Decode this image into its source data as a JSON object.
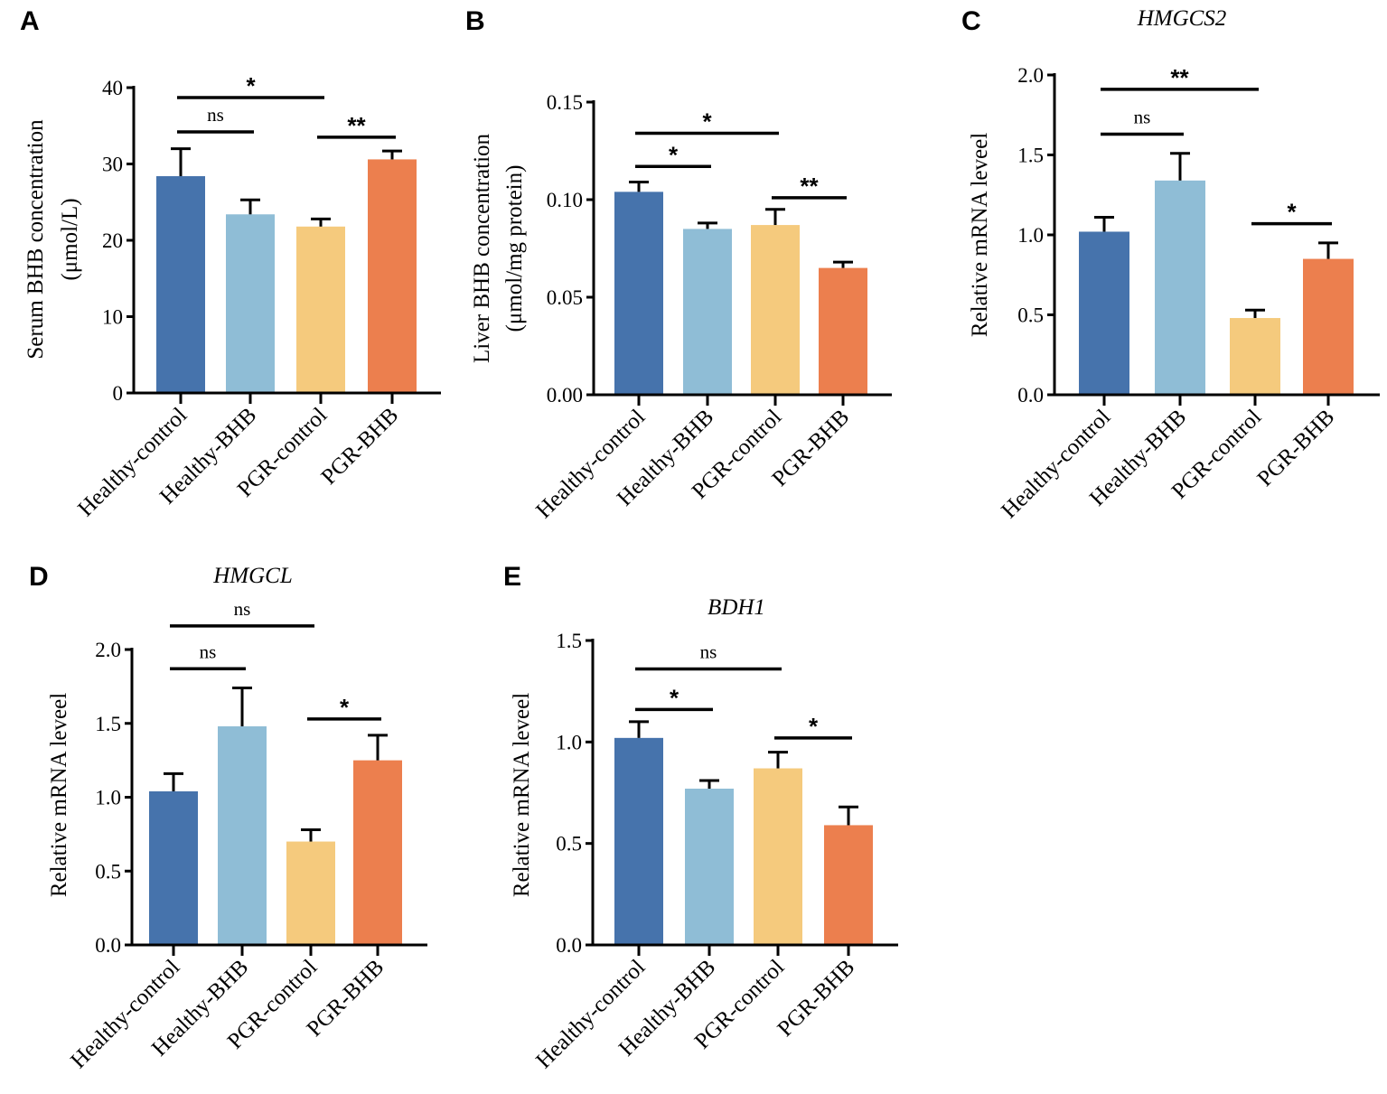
{
  "colors": {
    "healthy_control": "#4673ac",
    "healthy_bhb": "#8fbdd6",
    "pgr_control": "#f5ca7d",
    "pgr_bhb": "#ec7f4e"
  },
  "chart_data": [
    {
      "type": "bar",
      "panel": "A",
      "title": "",
      "ylabel": [
        "Serum BHB concentration",
        "(μmol/L)"
      ],
      "xlabel": "",
      "categories": [
        "Healthy-control",
        "Healthy-BHB",
        "PGR-control",
        "PGR-BHB"
      ],
      "values": [
        28.4,
        23.4,
        21.8,
        30.6
      ],
      "errors": [
        3.6,
        1.9,
        1.0,
        1.1
      ],
      "ylim": [
        0,
        40
      ],
      "yticks": [
        0,
        10,
        20,
        30,
        40
      ],
      "tick_labels": [
        "0",
        "10",
        "20",
        "30",
        "40"
      ],
      "comparisons": [
        {
          "from": 0,
          "to": 1,
          "label": "ns",
          "y": 34.2
        },
        {
          "from": 0,
          "to": 2,
          "label": "*",
          "y": 38.7
        },
        {
          "from": 2,
          "to": 3,
          "label": "**",
          "y": 33.5
        }
      ]
    },
    {
      "type": "bar",
      "panel": "B",
      "title": "",
      "ylabel": [
        "Liver BHB concentration",
        "(μmol/mg protein)"
      ],
      "xlabel": "",
      "categories": [
        "Healthy-control",
        "Healthy-BHB",
        "PGR-control",
        "PGR-BHB"
      ],
      "values": [
        0.104,
        0.085,
        0.087,
        0.065
      ],
      "errors": [
        0.005,
        0.003,
        0.008,
        0.003
      ],
      "ylim": [
        0,
        0.15
      ],
      "yticks": [
        0,
        0.05,
        0.1,
        0.15
      ],
      "tick_labels": [
        "0.00",
        "0.05",
        "0.10",
        "0.15"
      ],
      "comparisons": [
        {
          "from": 0,
          "to": 1,
          "label": "*",
          "y": 0.117
        },
        {
          "from": 0,
          "to": 2,
          "label": "*",
          "y": 0.134
        },
        {
          "from": 2,
          "to": 3,
          "label": "**",
          "y": 0.101
        }
      ]
    },
    {
      "type": "bar",
      "panel": "C",
      "title": "HMGCS2",
      "ylabel": [
        "Relative mRNA leveel"
      ],
      "xlabel": "",
      "categories": [
        "Healthy-control",
        "Healthy-BHB",
        "PGR-control",
        "PGR-BHB"
      ],
      "values": [
        1.02,
        1.34,
        0.48,
        0.85
      ],
      "errors": [
        0.09,
        0.17,
        0.05,
        0.1
      ],
      "ylim": [
        0,
        2.0
      ],
      "yticks": [
        0,
        0.5,
        1.0,
        1.5,
        2.0
      ],
      "tick_labels": [
        "0.0",
        "0.5",
        "1.0",
        "1.5",
        "2.0"
      ],
      "comparisons": [
        {
          "from": 0,
          "to": 1,
          "label": "ns",
          "y": 1.63
        },
        {
          "from": 0,
          "to": 2,
          "label": "**",
          "y": 1.91
        },
        {
          "from": 2,
          "to": 3,
          "label": "*",
          "y": 1.07
        }
      ]
    },
    {
      "type": "bar",
      "panel": "D",
      "title": "HMGCL",
      "ylabel": [
        "Relative mRNA leveel"
      ],
      "xlabel": "",
      "categories": [
        "Healthy-control",
        "Healthy-BHB",
        "PGR-control",
        "PGR-BHB"
      ],
      "values": [
        1.04,
        1.48,
        0.7,
        1.25
      ],
      "errors": [
        0.12,
        0.26,
        0.08,
        0.17
      ],
      "ylim": [
        0,
        2.0
      ],
      "yticks": [
        0,
        0.5,
        1.0,
        1.5,
        2.0
      ],
      "tick_labels": [
        "0.0",
        "0.5",
        "1.0",
        "1.5",
        "2.0"
      ],
      "comparisons": [
        {
          "from": 0,
          "to": 1,
          "label": "ns",
          "y": 1.87
        },
        {
          "from": 0,
          "to": 2,
          "label": "ns",
          "y": 2.16
        },
        {
          "from": 2,
          "to": 3,
          "label": "*",
          "y": 1.53
        }
      ]
    },
    {
      "type": "bar",
      "panel": "E",
      "title": "BDH1",
      "ylabel": [
        "Relative mRNA leveel"
      ],
      "xlabel": "",
      "categories": [
        "Healthy-control",
        "Healthy-BHB",
        "PGR-control",
        "PGR-BHB"
      ],
      "values": [
        1.02,
        0.77,
        0.87,
        0.59
      ],
      "errors": [
        0.08,
        0.04,
        0.08,
        0.09
      ],
      "ylim": [
        0,
        1.5
      ],
      "yticks": [
        0,
        0.5,
        1.0,
        1.5
      ],
      "tick_labels": [
        "0.0",
        "0.5",
        "1.0",
        "1.5"
      ],
      "comparisons": [
        {
          "from": 0,
          "to": 1,
          "label": "*",
          "y": 1.16
        },
        {
          "from": 0,
          "to": 2,
          "label": "ns",
          "y": 1.36
        },
        {
          "from": 2,
          "to": 3,
          "label": "*",
          "y": 1.02
        }
      ]
    }
  ]
}
